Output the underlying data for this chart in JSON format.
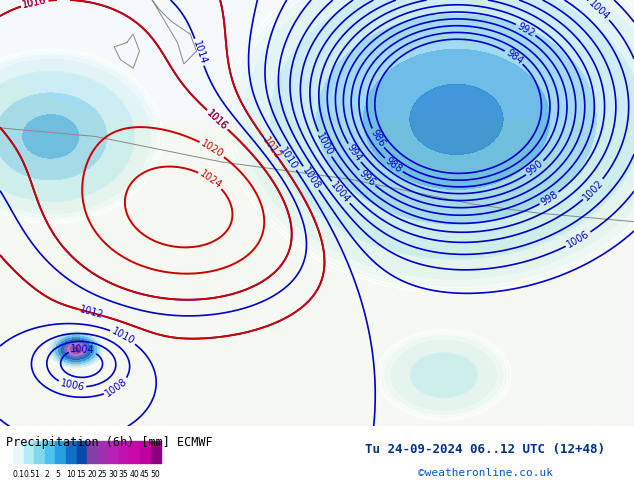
{
  "title_left": "Precipitation (6h) [mm] ECMWF",
  "title_right": "Tu 24-09-2024 06..12 UTC (12+48)",
  "watermark": "©weatheronline.co.uk",
  "colorbar_values": [
    0.1,
    0.5,
    1,
    2,
    5,
    10,
    15,
    20,
    25,
    30,
    35,
    40,
    45,
    50
  ],
  "colorbar_colors": [
    "#e0f8f8",
    "#c0f0f0",
    "#a0e8f0",
    "#80d8f0",
    "#60c8f0",
    "#40a8e8",
    "#2080d0",
    "#1060b8",
    "#c878d0",
    "#b060c0",
    "#9848b0",
    "#8030a0",
    "#681888",
    "#500070"
  ],
  "map_bg": "#f0f0f0",
  "land_color": "#c8e8b0",
  "sea_color": "#ddeeff",
  "figsize": [
    6.34,
    4.9
  ],
  "dpi": 100
}
